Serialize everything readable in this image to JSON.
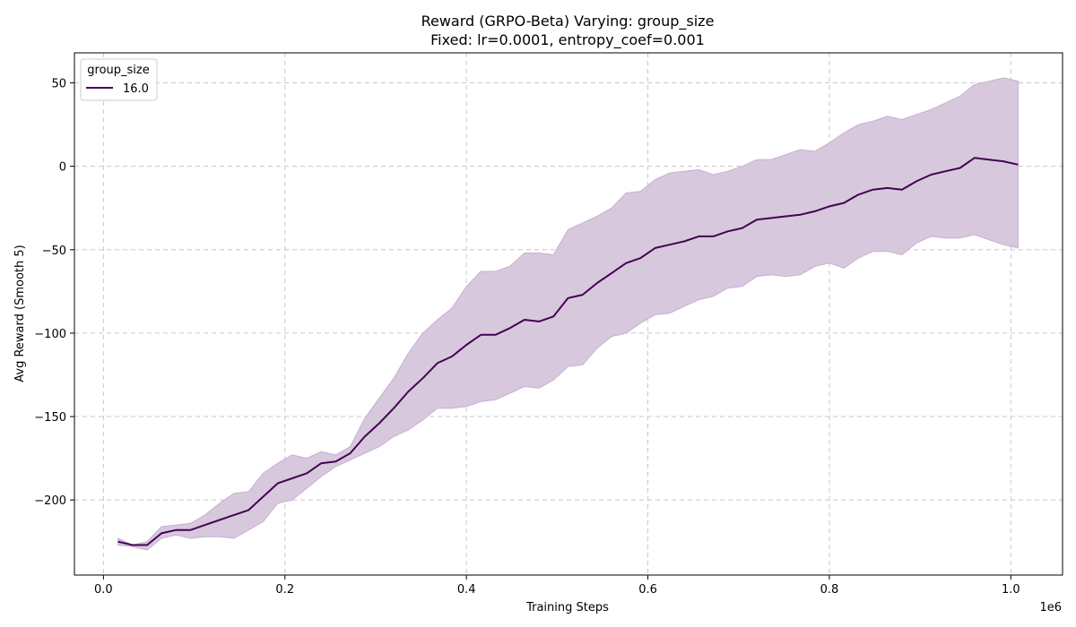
{
  "chart_data": {
    "type": "line",
    "title": "Reward (GRPO-Beta) Varying: group_size",
    "subtitle": "Fixed: lr=0.0001, entropy_coef=0.001",
    "xlabel": "Training Steps",
    "ylabel": "Avg Reward (Smooth 5)",
    "x_offset_label": "1e6",
    "xlim": [
      -32000,
      1057000
    ],
    "ylim": [
      -245,
      68
    ],
    "x_ticks": [
      0.0,
      0.2,
      0.4,
      0.6,
      0.8,
      1.0
    ],
    "x_tick_labels": [
      "0.0",
      "0.2",
      "0.4",
      "0.6",
      "0.8",
      "1.0"
    ],
    "y_ticks": [
      -200,
      -150,
      -100,
      -50,
      0,
      50
    ],
    "y_tick_labels": [
      "−200",
      "−150",
      "−100",
      "−50",
      "0",
      "50"
    ],
    "grid": true,
    "legend_title": "group_size",
    "legend_position": "top-left",
    "colors": {
      "line": "#440154",
      "band": "#d8c8dd",
      "band_edge": "#c6afd0",
      "grid": "#c8c8c8"
    },
    "series": [
      {
        "name": "16.0",
        "x": [
          16000,
          32000,
          48000,
          64000,
          80000,
          96000,
          112000,
          128000,
          144000,
          160000,
          176000,
          192000,
          208000,
          224000,
          240000,
          256000,
          272000,
          288000,
          304000,
          320000,
          336000,
          352000,
          368000,
          384000,
          400000,
          416000,
          432000,
          448000,
          464000,
          480000,
          496000,
          512000,
          528000,
          544000,
          560000,
          576000,
          592000,
          608000,
          624000,
          640000,
          656000,
          672000,
          688000,
          704000,
          720000,
          736000,
          752000,
          768000,
          784000,
          800000,
          816000,
          832000,
          848000,
          864000,
          880000,
          896000,
          912000,
          928000,
          944000,
          960000,
          976000,
          992000,
          1008000
        ],
        "mean": [
          -225,
          -227,
          -227,
          -220,
          -218,
          -218,
          -215,
          -212,
          -209,
          -206,
          -198,
          -190,
          -187,
          -184,
          -178,
          -177,
          -172,
          -162,
          -154,
          -145,
          -135,
          -127,
          -118,
          -114,
          -107,
          -101,
          -101,
          -97,
          -92,
          -93,
          -90,
          -79,
          -77,
          -70,
          -64,
          -58,
          -55,
          -49,
          -47,
          -45,
          -42,
          -42,
          -39,
          -37,
          -32,
          -31,
          -30,
          -29,
          -27,
          -24,
          -22,
          -17,
          -14,
          -13,
          -14,
          -9,
          -5,
          -3,
          -1,
          5,
          4,
          3,
          1
        ],
        "upper": [
          -223,
          -227,
          -225,
          -216,
          -215,
          -214,
          -209,
          -202,
          -196,
          -195,
          -184,
          -178,
          -173,
          -175,
          -171,
          -173,
          -168,
          -151,
          -139,
          -127,
          -112,
          -100,
          -92,
          -85,
          -72,
          -63,
          -63,
          -60,
          -52,
          -52,
          -53,
          -38,
          -34,
          -30,
          -25,
          -16,
          -15,
          -8,
          -4,
          -3,
          -2,
          -5,
          -3,
          0,
          4,
          4,
          7,
          10,
          9,
          14,
          20,
          25,
          27,
          30,
          28,
          31,
          34,
          38,
          42,
          49,
          51,
          53,
          51
        ],
        "lower": [
          -227,
          -228,
          -230,
          -223,
          -221,
          -223,
          -222,
          -222,
          -223,
          -218,
          -213,
          -202,
          -200,
          -193,
          -186,
          -180,
          -176,
          -172,
          -168,
          -162,
          -158,
          -152,
          -145,
          -145,
          -144,
          -141,
          -140,
          -136,
          -132,
          -133,
          -128,
          -120,
          -119,
          -109,
          -102,
          -100,
          -94,
          -89,
          -88,
          -84,
          -80,
          -78,
          -73,
          -72,
          -66,
          -65,
          -66,
          -65,
          -60,
          -58,
          -61,
          -55,
          -51,
          -51,
          -53,
          -46,
          -42,
          -43,
          -43,
          -41,
          -44,
          -47,
          -49
        ]
      }
    ]
  }
}
